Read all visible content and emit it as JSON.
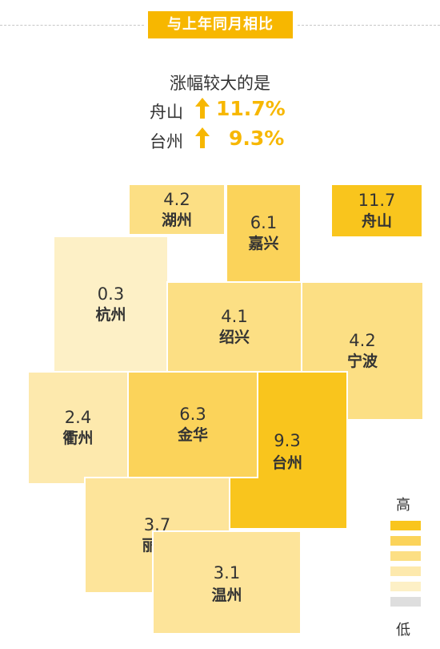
{
  "title": "与上年同月相比",
  "highlight": {
    "subtitle": "涨幅较大的是",
    "items": [
      {
        "name": "舟山",
        "value": "11.7%"
      },
      {
        "name": "台州",
        "value": "9.3%"
      }
    ]
  },
  "regions": [
    {
      "name": "湖州",
      "value": "4.2",
      "color": "#fcdf84"
    },
    {
      "name": "嘉兴",
      "value": "6.1",
      "color": "#fbd35a"
    },
    {
      "name": "舟山",
      "value": "11.7",
      "color": "#f9c51d"
    },
    {
      "name": "杭州",
      "value": "0.3",
      "color": "#fdf0c6"
    },
    {
      "name": "绍兴",
      "value": "4.1",
      "color": "#fcdf84"
    },
    {
      "name": "宁波",
      "value": "4.2",
      "color": "#fcdf84"
    },
    {
      "name": "衢州",
      "value": "2.4",
      "color": "#fde9ad"
    },
    {
      "name": "金华",
      "value": "6.3",
      "color": "#fbd35a"
    },
    {
      "name": "台州",
      "value": "9.3",
      "color": "#f9c51d"
    },
    {
      "name": "丽水",
      "value": "3.7",
      "color": "#fde49a"
    },
    {
      "name": "温州",
      "value": "3.1",
      "color": "#fde49a"
    }
  ],
  "legend": {
    "high_label": "高",
    "low_label": "低",
    "colors": [
      "#f9c51d",
      "#fbd35a",
      "#fcdf84",
      "#fde9ad",
      "#fdf0c6",
      "#dedede"
    ]
  }
}
